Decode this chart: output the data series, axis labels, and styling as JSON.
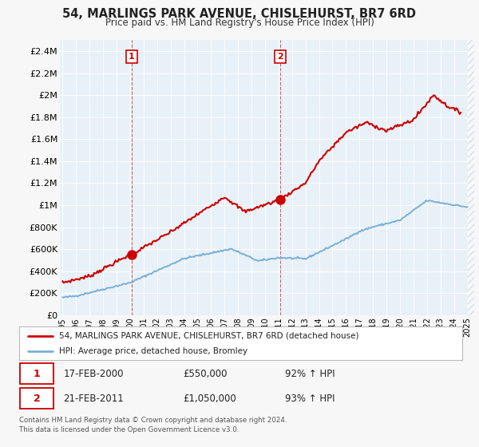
{
  "title": "54, MARLINGS PARK AVENUE, CHISLEHURST, BR7 6RD",
  "subtitle": "Price paid vs. HM Land Registry's House Price Index (HPI)",
  "hpi_label": "HPI: Average price, detached house, Bromley",
  "property_label": "54, MARLINGS PARK AVENUE, CHISLEHURST, BR7 6RD (detached house)",
  "property_color": "#cc0000",
  "hpi_color": "#7ab0d4",
  "background_color": "#f7f7f7",
  "plot_bg_color": "#e8f0f8",
  "grid_color": "#ffffff",
  "ylim": [
    0,
    2500000
  ],
  "yticks": [
    0,
    200000,
    400000,
    600000,
    800000,
    1000000,
    1200000,
    1400000,
    1600000,
    1800000,
    2000000,
    2200000,
    2400000
  ],
  "ytick_labels": [
    "£0",
    "£200K",
    "£400K",
    "£600K",
    "£800K",
    "£1M",
    "£1.2M",
    "£1.4M",
    "£1.6M",
    "£1.8M",
    "£2M",
    "£2.2M",
    "£2.4M"
  ],
  "sale1_year": 2000.12,
  "sale1_price": 550000,
  "sale2_year": 2011.12,
  "sale2_price": 1050000,
  "annotation1_date": "17-FEB-2000",
  "annotation1_price": "£550,000",
  "annotation1_hpi": "92% ↑ HPI",
  "annotation2_date": "21-FEB-2011",
  "annotation2_price": "£1,050,000",
  "annotation2_hpi": "93% ↑ HPI",
  "footnote": "Contains HM Land Registry data © Crown copyright and database right 2024.\nThis data is licensed under the Open Government Licence v3.0.",
  "xmin": 1995,
  "xmax": 2025.5
}
